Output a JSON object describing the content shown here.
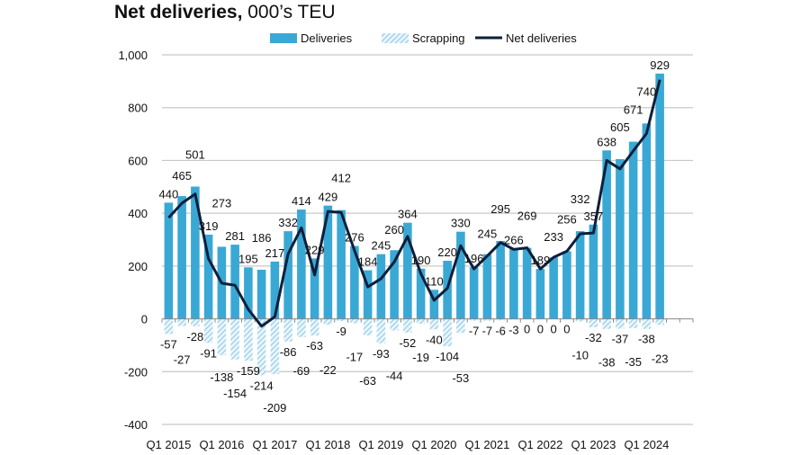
{
  "chart_data": {
    "type": "bar",
    "title_bold": "Net deliveries,",
    "title_rest": " 000’s TEU",
    "xlabel": "",
    "ylabel": "",
    "ylim": [
      -400,
      1000
    ],
    "yticks": [
      -400,
      -200,
      0,
      200,
      400,
      600,
      800,
      1000
    ],
    "ytick_labels": [
      "-400",
      "-200",
      "0",
      "200",
      "400",
      "600",
      "800",
      "1,000"
    ],
    "grid": true,
    "legend_position": "top",
    "x_tick_labels": [
      "Q1 2015",
      "Q1 2016",
      "Q1 2017",
      "Q1 2018",
      "Q1 2019",
      "Q1 2020",
      "Q1 2021",
      "Q1 2022",
      "Q1 2023",
      "Q1 2024"
    ],
    "period_count": 40,
    "series": [
      {
        "name": "Deliveries",
        "type": "bar",
        "color": "#3aa8d4",
        "values": [
          440,
          465,
          501,
          319,
          273,
          281,
          195,
          186,
          217,
          332,
          414,
          229,
          429,
          412,
          276,
          184,
          245,
          260,
          364,
          190,
          110,
          220,
          330,
          196,
          245,
          295,
          266,
          269,
          189,
          233,
          256,
          332,
          357,
          638,
          605,
          671,
          740,
          929
        ]
      },
      {
        "name": "Scrapping",
        "type": "bar-hatched",
        "color": "#8fcbe6",
        "values": [
          -57,
          -27,
          -28,
          -91,
          -138,
          -154,
          -159,
          -214,
          -209,
          -86,
          -69,
          -63,
          -22,
          -9,
          -17,
          -63,
          -93,
          -44,
          -52,
          -19,
          -40,
          -104,
          -53,
          -7,
          -7,
          -6,
          -3,
          0,
          0,
          0,
          0,
          -10,
          -32,
          -38,
          -37,
          -35,
          -38,
          -23
        ]
      },
      {
        "name": "Net deliveries",
        "type": "line",
        "color": "#0d1f3c",
        "values": [
          383,
          438,
          473,
          228,
          135,
          127,
          36,
          -28,
          8,
          246,
          345,
          166,
          407,
          403,
          259,
          121,
          152,
          216,
          312,
          171,
          70,
          116,
          277,
          189,
          238,
          289,
          263,
          269,
          189,
          233,
          256,
          322,
          325,
          600,
          568,
          636,
          702,
          906
        ]
      }
    ]
  }
}
